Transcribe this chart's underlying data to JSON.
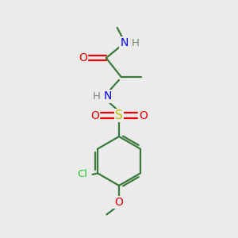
{
  "background_color": "#ebebeb",
  "atom_colors": {
    "C": "#3a7a3a",
    "N": "#0000ee",
    "O": "#ee0000",
    "S": "#bbbb00",
    "Cl": "#22cc22",
    "H_gray": "#778877"
  },
  "bond_color": "#3a7a3a",
  "figsize": [
    3.0,
    3.0
  ],
  "dpi": 100
}
